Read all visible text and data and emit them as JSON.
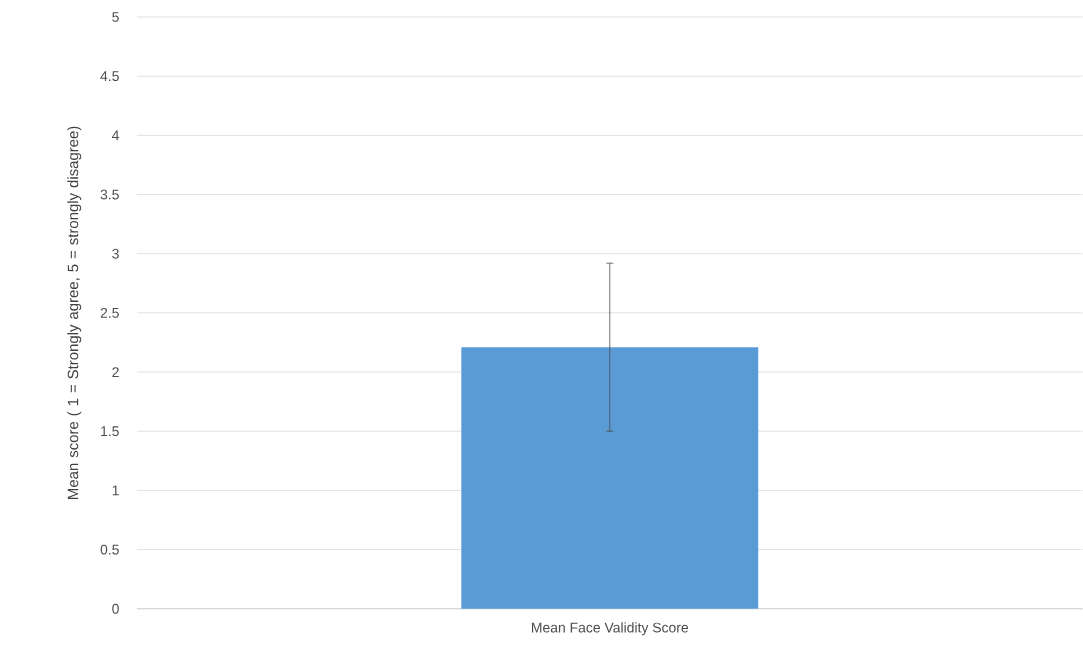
{
  "chart_data": {
    "type": "bar",
    "ylabel": "Mean score ( 1 = Strongly agree, 5 = strongly disagree)",
    "categories": [
      "Mean Face Validity Score"
    ],
    "values": [
      2.21
    ],
    "errors": [
      0.71
    ],
    "color": "#5b9bd5",
    "ylim": [
      0,
      5
    ],
    "yticks": [
      0,
      0.5,
      1,
      1.5,
      2,
      2.5,
      3,
      3.5,
      4,
      4.5,
      5
    ],
    "grid": "y"
  }
}
